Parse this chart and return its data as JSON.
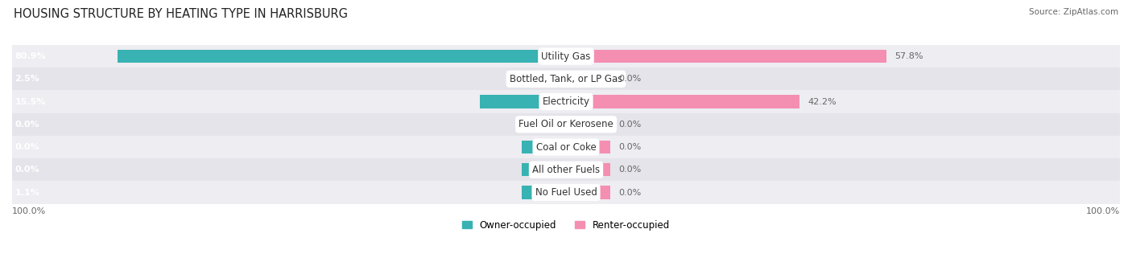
{
  "title": "HOUSING STRUCTURE BY HEATING TYPE IN HARRISBURG",
  "source": "Source: ZipAtlas.com",
  "categories": [
    "Utility Gas",
    "Bottled, Tank, or LP Gas",
    "Electricity",
    "Fuel Oil or Kerosene",
    "Coal or Coke",
    "All other Fuels",
    "No Fuel Used"
  ],
  "owner_values": [
    80.9,
    2.5,
    15.5,
    0.0,
    0.0,
    0.0,
    1.1
  ],
  "renter_values": [
    57.8,
    0.0,
    42.2,
    0.0,
    0.0,
    0.0,
    0.0
  ],
  "owner_color": "#38b2b2",
  "renter_color": "#f48fb1",
  "row_bg_even": "#ededf2",
  "row_bg_odd": "#e4e4ea",
  "label_color": "#666666",
  "title_color": "#222222",
  "max_value": 100.0,
  "min_stub": 8.0,
  "legend_labels": [
    "Owner-occupied",
    "Renter-occupied"
  ],
  "x_axis_labels": [
    "100.0%",
    "100.0%"
  ],
  "bar_height": 0.58,
  "label_fontsize": 8.5,
  "title_fontsize": 10.5,
  "source_fontsize": 7.5,
  "value_label_fontsize": 8.0
}
